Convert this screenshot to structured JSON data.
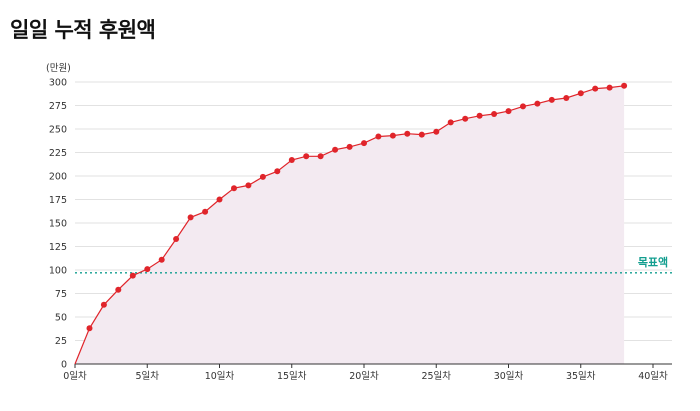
{
  "page": {
    "title": "일일 누적 후원액"
  },
  "colors": {
    "series": "#e0252b",
    "area": "#f3eaf1",
    "grid": "#e2e2e2",
    "target": "#129e8f",
    "axis": "#333333"
  },
  "chart_data": {
    "type": "line",
    "title": "일일 누적 후원액",
    "y_unit_label": "(만원)",
    "xlabel": "",
    "ylabel": "",
    "xlim": [
      0,
      40
    ],
    "ylim": [
      0,
      300
    ],
    "x_ticks": [
      0,
      5,
      10,
      15,
      20,
      25,
      30,
      35,
      40
    ],
    "x_tick_labels": [
      "0일차",
      "5일차",
      "10일차",
      "15일차",
      "20일차",
      "25일차",
      "30일차",
      "35일차",
      "40일차"
    ],
    "y_ticks": [
      0,
      25,
      50,
      75,
      100,
      125,
      150,
      175,
      200,
      225,
      250,
      275,
      300
    ],
    "grid": true,
    "area_fill": true,
    "target_line": {
      "label": "목표액",
      "value": 97
    },
    "series": [
      {
        "x": [
          0,
          1,
          2,
          3,
          4,
          5,
          6,
          7,
          8,
          9,
          10,
          11,
          12,
          13,
          14,
          15,
          16,
          17,
          18,
          19,
          20,
          21,
          22,
          23,
          24,
          25,
          26,
          27,
          28,
          29,
          30,
          31,
          32,
          33,
          34,
          35,
          36,
          37,
          38
        ],
        "values": [
          0,
          38,
          63,
          79,
          94,
          101,
          111,
          133,
          156,
          162,
          175,
          187,
          190,
          199,
          205,
          217,
          221,
          221,
          228,
          231,
          235,
          242,
          243,
          245,
          244,
          247,
          257,
          261,
          264,
          266,
          269,
          274,
          277,
          281,
          283,
          288,
          293,
          294,
          296
        ]
      }
    ]
  }
}
